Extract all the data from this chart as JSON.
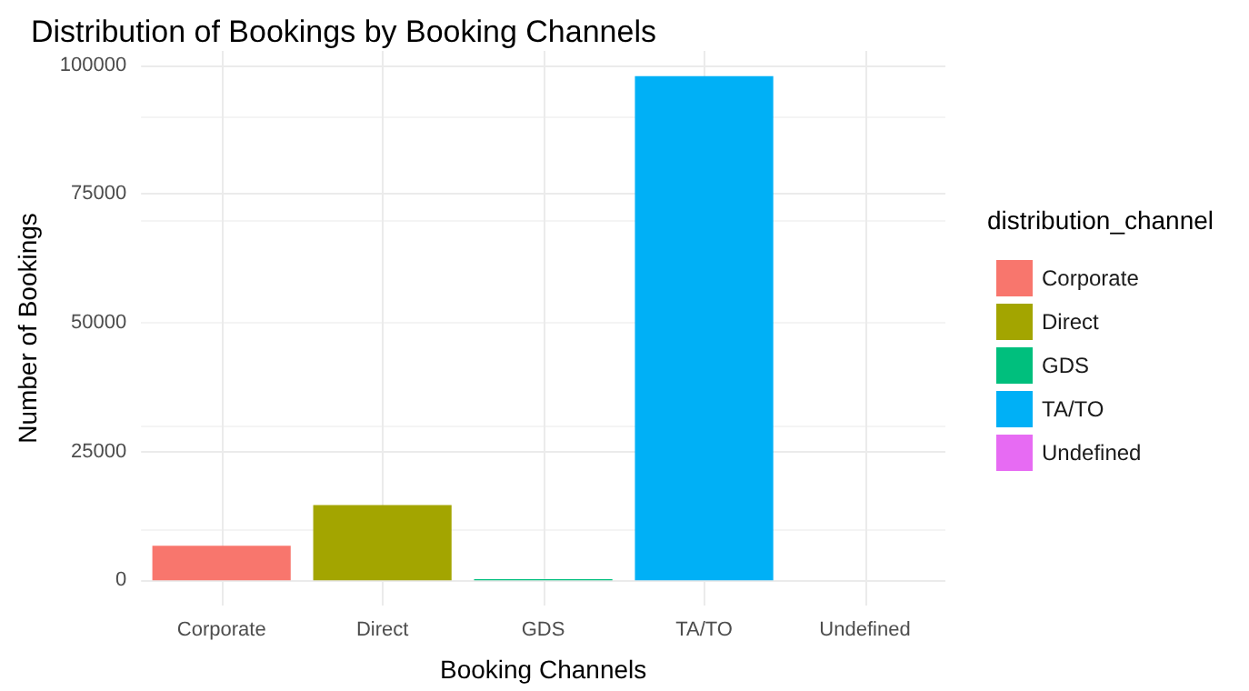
{
  "chart_data": {
    "type": "bar",
    "title": "Distribution of Bookings by Booking Channels",
    "xlabel": "Booking Channels",
    "ylabel": "Number of Bookings",
    "legend_title": "distribution_channel",
    "categories": [
      "Corporate",
      "Direct",
      "GDS",
      "TA/TO",
      "Undefined"
    ],
    "series": [
      {
        "name": "Corporate",
        "color": "#f8766d",
        "values": [
          6700,
          null,
          null,
          null,
          null
        ]
      },
      {
        "name": "Direct",
        "color": "#a3a500",
        "values": [
          null,
          14600,
          null,
          null,
          null
        ]
      },
      {
        "name": "GDS",
        "color": "#00bf7d",
        "values": [
          null,
          null,
          200,
          null,
          null
        ]
      },
      {
        "name": "TA/TO",
        "color": "#00b0f6",
        "values": [
          null,
          null,
          null,
          97900,
          null
        ]
      },
      {
        "name": "Undefined",
        "color": "#e76bf3",
        "values": [
          null,
          null,
          null,
          null,
          0
        ]
      }
    ],
    "stacked": true,
    "ylim": [
      -4900,
      102800
    ],
    "yticks": [
      0,
      25000,
      50000,
      75000,
      100000
    ],
    "grid": true,
    "legend": "right"
  }
}
